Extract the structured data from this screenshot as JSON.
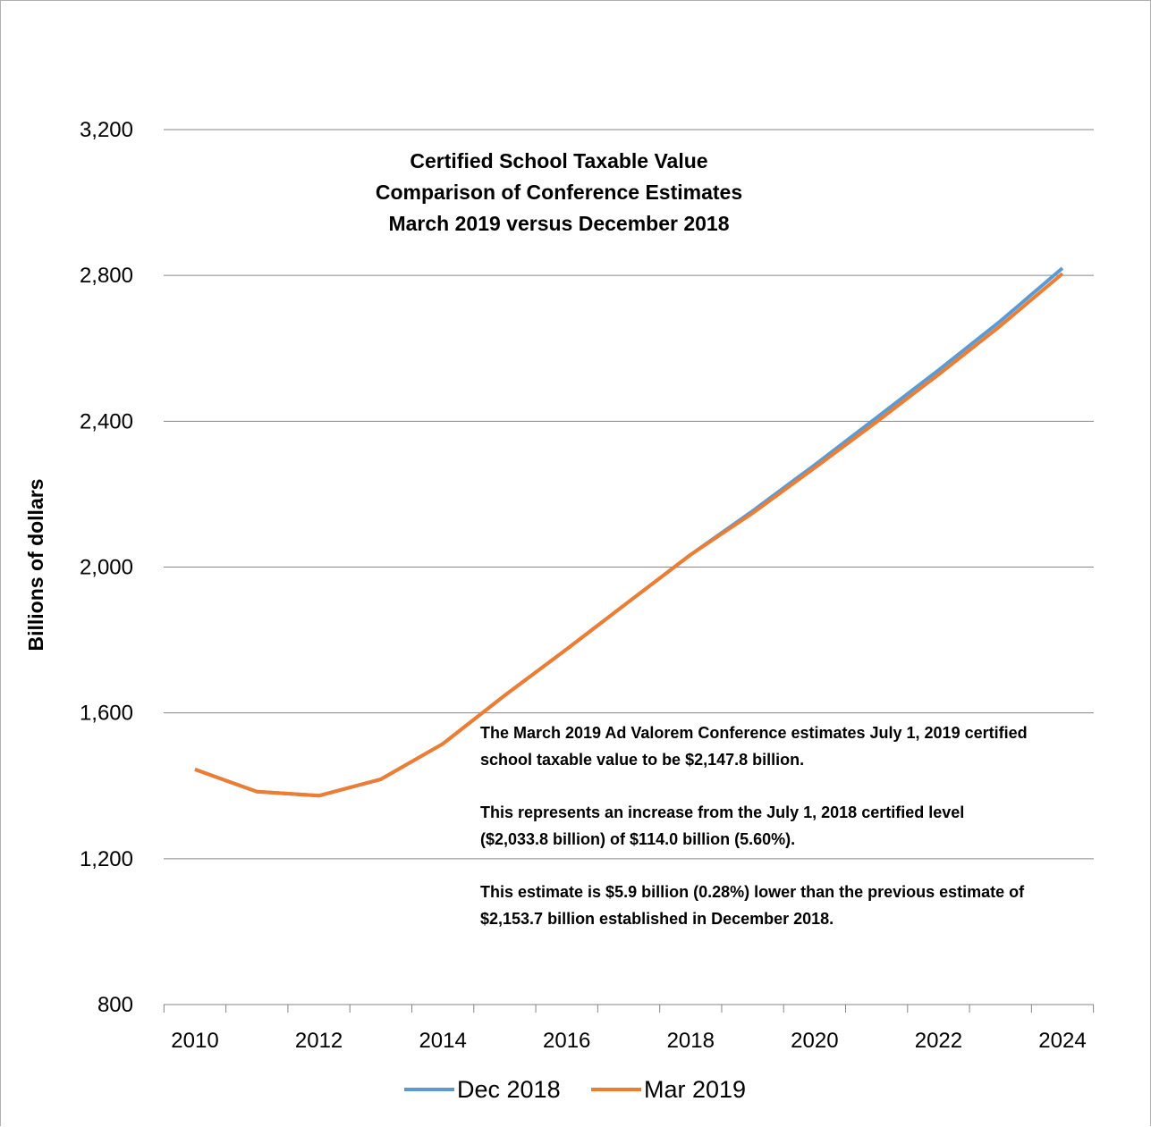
{
  "chart_data": {
    "type": "line",
    "title": [
      "Certified School Taxable Value",
      "Comparison of Conference Estimates",
      "March 2019 versus December 2018"
    ],
    "ylabel": "Billions of dollars",
    "xlabel": "",
    "x": [
      2010,
      2011,
      2012,
      2013,
      2014,
      2015,
      2016,
      2017,
      2018,
      2019,
      2020,
      2021,
      2022,
      2023,
      2024
    ],
    "x_tick_labels": [
      "2010",
      "2012",
      "2014",
      "2016",
      "2018",
      "2020",
      "2022",
      "2024"
    ],
    "x_tick_values": [
      2010,
      2012,
      2014,
      2016,
      2018,
      2020,
      2022,
      2024
    ],
    "ylim": [
      800,
      3200
    ],
    "xlim": [
      2010,
      2024
    ],
    "y_tick_values": [
      800,
      1200,
      1600,
      2000,
      2400,
      2800,
      3200
    ],
    "y_tick_labels": [
      "800",
      "1,200",
      "1,600",
      "2,000",
      "2,400",
      "2,800",
      "3,200"
    ],
    "grid": "horizontal",
    "legend_position": "bottom",
    "series": [
      {
        "name": "Dec 2018",
        "color": "#5B9BD5",
        "values": [
          1445,
          1384,
          1373,
          1418,
          1515,
          1648,
          1775,
          1905,
          2034,
          2154,
          2280,
          2410,
          2540,
          2675,
          2820
        ]
      },
      {
        "name": "Mar 2019",
        "color": "#ED7D31",
        "values": [
          1445,
          1384,
          1373,
          1418,
          1515,
          1648,
          1775,
          1905,
          2034,
          2148,
          2272,
          2398,
          2528,
          2662,
          2805
        ]
      }
    ],
    "annotation": [
      "The March 2019 Ad Valorem Conference estimates July 1, 2019 certified",
      "school taxable value to be $2,147.8  billion.",
      "This represents an increase from the  July 1, 2018 certified level",
      "($2,033.8 billion) of $114.0 billion (5.60%).",
      "This estimate is $5.9 billion (0.28%) lower than the previous estimate of",
      "$2,153.7 billion established in December 2018."
    ]
  }
}
